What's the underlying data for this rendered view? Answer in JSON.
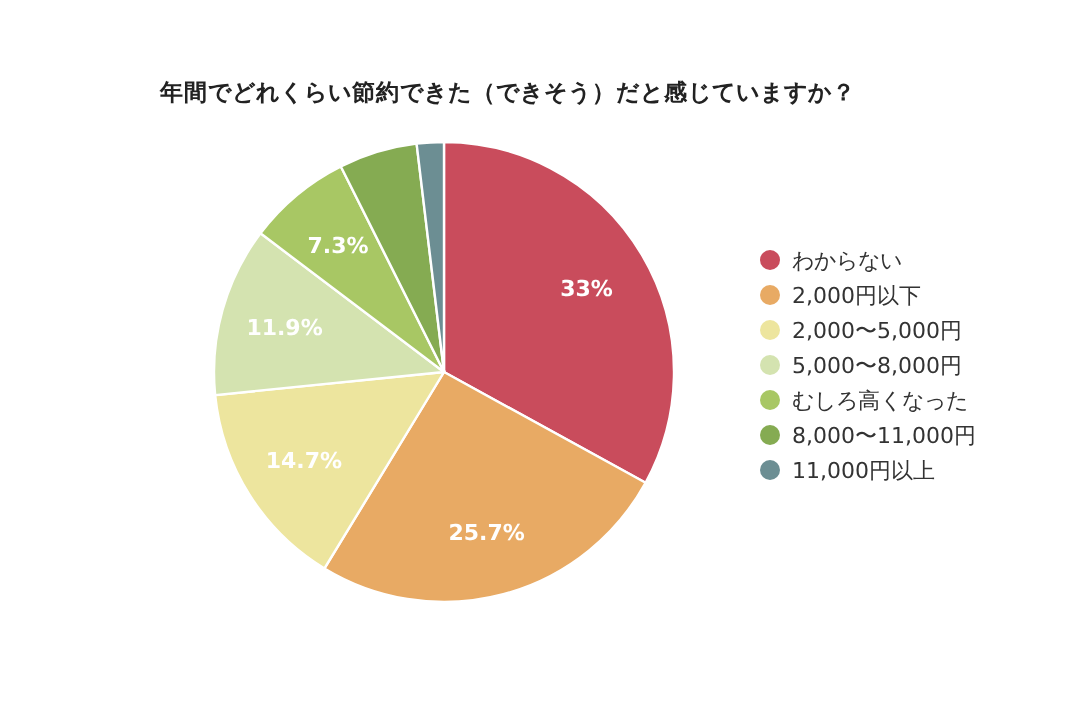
{
  "chart_data": {
    "type": "pie",
    "title": "年間でどれくらい節約できた（できそう）だと感じていますか？",
    "categories": [
      "わからない",
      "2,000円以下",
      "2,000〜5,000円",
      "5,000〜8,000円",
      "むしろ高くなった",
      "8,000〜11,000円",
      "11,000円以上"
    ],
    "values": [
      33,
      25.7,
      14.7,
      11.9,
      7.3,
      5.5,
      1.9
    ],
    "value_labels": [
      "33%",
      "25.7%",
      "14.7%",
      "11.9%",
      "7.3%",
      null,
      null
    ],
    "colors": [
      "#c94c5c",
      "#e8aa64",
      "#ede59e",
      "#d4e3b0",
      "#a8c764",
      "#85ab52",
      "#6c8e93"
    ],
    "legend": "right"
  }
}
